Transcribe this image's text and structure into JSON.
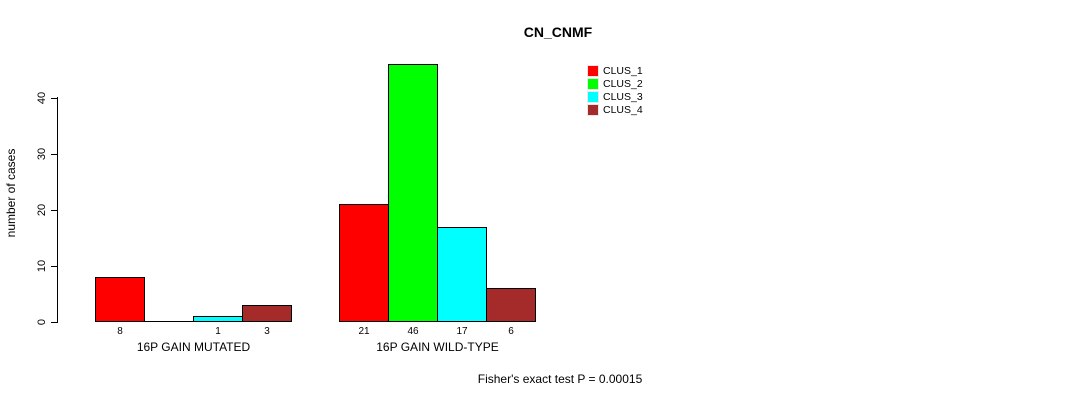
{
  "title": "CN_CNMF",
  "y_axis": {
    "label": "number of cases",
    "ticks": [
      0,
      10,
      20,
      30,
      40
    ]
  },
  "legend": {
    "items": [
      {
        "label": "CLUS_1",
        "color": "#FF0000"
      },
      {
        "label": "CLUS_2",
        "color": "#00FF00"
      },
      {
        "label": "CLUS_3",
        "color": "#00FFFF"
      },
      {
        "label": "CLUS_4",
        "color": "#A52A2A"
      }
    ]
  },
  "annotation": "Fisher's exact test P = 0.00015",
  "chart_data": {
    "type": "bar",
    "title": "CN_CNMF",
    "xlabel": "",
    "ylabel": "number of cases",
    "ylim": [
      0,
      40
    ],
    "yticks": [
      0,
      10,
      20,
      30,
      40
    ],
    "grid": false,
    "legend_position": "top-right",
    "categories": [
      "16P GAIN MUTATED",
      "16P GAIN WILD-TYPE"
    ],
    "series": [
      {
        "name": "CLUS_1",
        "color": "#FF0000",
        "values": [
          8,
          21
        ]
      },
      {
        "name": "CLUS_2",
        "color": "#00FF00",
        "values": [
          0,
          46
        ]
      },
      {
        "name": "CLUS_3",
        "color": "#00FFFF",
        "values": [
          1,
          17
        ]
      },
      {
        "name": "CLUS_4",
        "color": "#A52A2A",
        "values": [
          3,
          6
        ]
      }
    ],
    "bar_value_labels": [
      [
        "8",
        "",
        "1",
        "3"
      ],
      [
        "21",
        "46",
        "17",
        "6"
      ]
    ],
    "annotation": "Fisher's exact test P = 0.00015"
  }
}
